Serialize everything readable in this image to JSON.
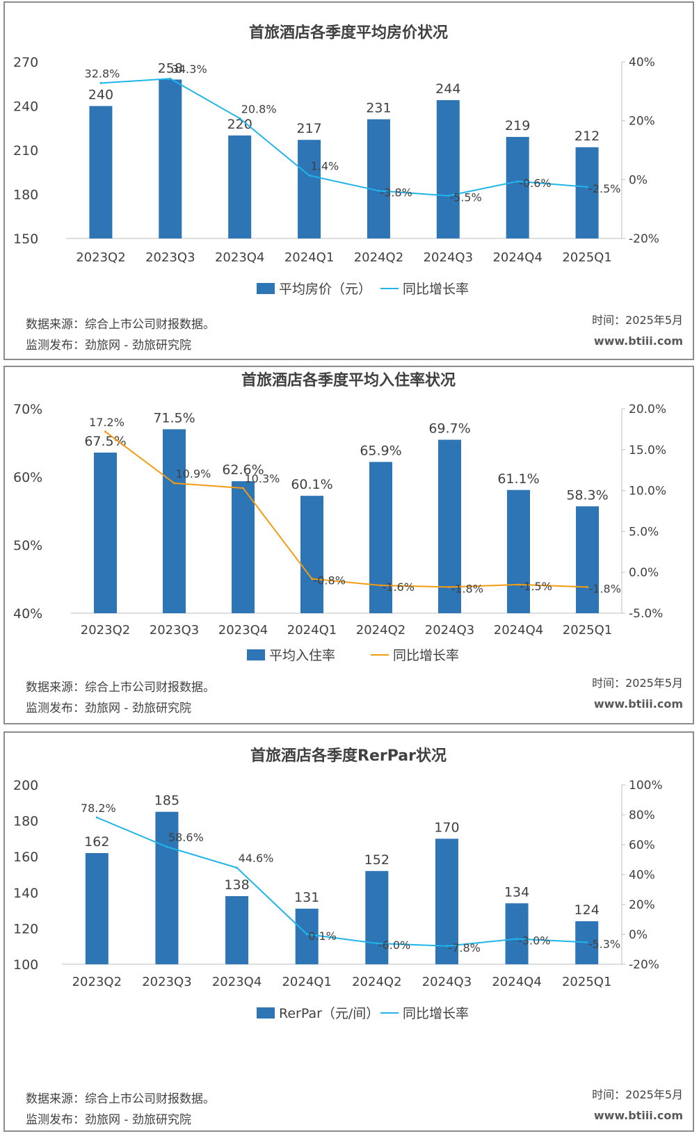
{
  "chart_data": [
    {
      "type": "bar",
      "title": "首旅酒店各季度平均房价状况",
      "categories": [
        "2023Q2",
        "2023Q3",
        "2023Q4",
        "2024Q1",
        "2024Q2",
        "2024Q3",
        "2024Q4",
        "2025Q1"
      ],
      "series": [
        {
          "name": "平均房价（元）",
          "type": "bar",
          "axis": "left",
          "values": [
            240,
            258,
            220,
            217,
            231,
            244,
            219,
            212
          ],
          "labels": [
            "240",
            "258",
            "220",
            "217",
            "231",
            "244",
            "219",
            "212"
          ]
        },
        {
          "name": "同比增长率",
          "type": "line",
          "axis": "right",
          "values": [
            32.8,
            34.3,
            20.8,
            1.4,
            -3.8,
            -5.5,
            -0.6,
            -2.5
          ],
          "labels": [
            "32.8%",
            "34.3%",
            "20.8%",
            "1.4%",
            "-3.8%",
            "-5.5%",
            "-0.6%",
            "-2.5%"
          ]
        }
      ],
      "ylim": [
        150,
        270
      ],
      "yticks": [
        "150",
        "180",
        "210",
        "240",
        "270"
      ],
      "ylim_right": [
        -20,
        40
      ],
      "yticks_right": [
        "-20%",
        "0%",
        "20%",
        "40%"
      ],
      "bar_color": "#2e75b6",
      "line_color": "#1fb4ea",
      "legend_position": "bottom",
      "grid": false,
      "footer": {
        "source": "数据来源：综合上市公司财报数据。",
        "publisher": "监测发布：劲旅网 - 劲旅研究院",
        "date": "时间：2025年5月",
        "site": "www.btiii.com"
      }
    },
    {
      "type": "bar",
      "title": "首旅酒店各季度平均入住率状况",
      "categories": [
        "2023Q2",
        "2023Q3",
        "2023Q4",
        "2024Q1",
        "2024Q2",
        "2024Q3",
        "2024Q4",
        "2025Q1"
      ],
      "series": [
        {
          "name": "平均入住率",
          "type": "bar",
          "axis": "left",
          "values": [
            67.5,
            71.5,
            62.6,
            60.1,
            65.9,
            69.7,
            61.1,
            58.3
          ],
          "labels": [
            "67.5%",
            "71.5%",
            "62.6%",
            "60.1%",
            "65.9%",
            "69.7%",
            "61.1%",
            "58.3%"
          ]
        },
        {
          "name": "同比增长率",
          "type": "line",
          "axis": "right",
          "values": [
            17.2,
            10.9,
            10.3,
            -0.8,
            -1.6,
            -1.8,
            -1.5,
            -1.8
          ],
          "labels": [
            "17.2%",
            "10.9%",
            "10.3%",
            "-0.8%",
            "-1.6%",
            "-1.8%",
            "-1.5%",
            "-1.8%"
          ]
        }
      ],
      "ylim": [
        40,
        75
      ],
      "yticks": [
        "40%",
        "50%",
        "60%",
        "70%"
      ],
      "ylim_right": [
        -5,
        20
      ],
      "yticks_right": [
        "-5.0%",
        "0.0%",
        "5.0%",
        "10.0%",
        "15.0%",
        "20.0%"
      ],
      "bar_color": "#2e75b6",
      "line_color": "#f39c12",
      "legend_position": "bottom",
      "grid": false,
      "footer": {
        "source": "数据来源：综合上市公司财报数据。",
        "publisher": "监测发布：劲旅网 - 劲旅研究院",
        "date": "时间：2025年5月",
        "site": "www.btiii.com"
      }
    },
    {
      "type": "bar",
      "title": "首旅酒店各季度RerPar状况",
      "categories": [
        "2023Q2",
        "2023Q3",
        "2023Q4",
        "2024Q1",
        "2024Q2",
        "2024Q3",
        "2024Q4",
        "2025Q1"
      ],
      "series": [
        {
          "name": "RerPar（元/间）",
          "type": "bar",
          "axis": "left",
          "values": [
            162,
            185,
            138,
            131,
            152,
            170,
            134,
            124
          ],
          "labels": [
            "162",
            "185",
            "138",
            "131",
            "152",
            "170",
            "134",
            "124"
          ]
        },
        {
          "name": "同比增长率",
          "type": "line",
          "axis": "right",
          "values": [
            78.2,
            58.6,
            44.6,
            0.1,
            -6.0,
            -7.8,
            -3.0,
            -5.3
          ],
          "labels": [
            "78.2%",
            "58.6%",
            "44.6%",
            "0.1%",
            "-6.0%",
            "-7.8%",
            "-3.0%",
            "-5.3%"
          ]
        }
      ],
      "ylim": [
        100,
        200
      ],
      "yticks": [
        "100",
        "120",
        "140",
        "160",
        "180",
        "200"
      ],
      "ylim_right": [
        -20,
        100
      ],
      "yticks_right": [
        "-20%",
        "0%",
        "20%",
        "40%",
        "60%",
        "80%",
        "100%"
      ],
      "bar_color": "#2e75b6",
      "line_color": "#1fb4ea",
      "legend_position": "bottom",
      "grid": false,
      "footer": {
        "source": "数据来源：综合上市公司财报数据。",
        "publisher": "监测发布：劲旅网 - 劲旅研究院",
        "date": "时间：2025年5月",
        "site": "www.btiii.com"
      }
    }
  ]
}
